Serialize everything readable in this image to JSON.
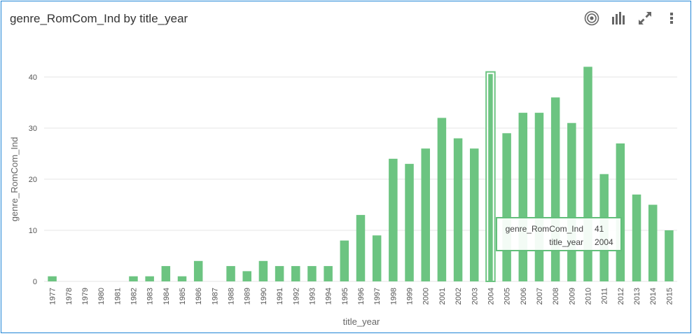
{
  "header": {
    "title": "genre_RomCom_Ind by title_year"
  },
  "toolbar": {
    "icons": [
      "target-icon",
      "bar-chart-icon",
      "expand-icon",
      "more-vertical-icon"
    ]
  },
  "colors": {
    "bar": "#6cc481",
    "bar_highlight_stroke": "#6cc481",
    "grid": "#e6e6e6",
    "frame": "#1f84d6"
  },
  "tooltip": {
    "series_label": "genre_RomCom_Ind",
    "series_value": "41",
    "x_label": "title_year",
    "x_value": "2004"
  },
  "chart_data": {
    "type": "bar",
    "title": "genre_RomCom_Ind by title_year",
    "xlabel": "title_year",
    "ylabel": "genre_RomCom_Ind",
    "ylim": [
      0,
      40
    ],
    "yticks": [
      0,
      10,
      20,
      30,
      40
    ],
    "grid": true,
    "categories": [
      "1977",
      "1978",
      "1979",
      "1980",
      "1981",
      "1982",
      "1983",
      "1984",
      "1985",
      "1986",
      "1987",
      "1988",
      "1989",
      "1990",
      "1991",
      "1992",
      "1993",
      "1994",
      "1995",
      "1996",
      "1997",
      "1998",
      "1999",
      "2000",
      "2001",
      "2002",
      "2003",
      "2004",
      "2005",
      "2006",
      "2007",
      "2008",
      "2009",
      "2010",
      "2011",
      "2012",
      "2013",
      "2014",
      "2015"
    ],
    "series": [
      {
        "values": [
          1,
          0,
          0,
          0,
          0,
          1,
          1,
          3,
          1,
          4,
          0,
          3,
          2,
          4,
          3,
          3,
          3,
          3,
          8,
          13,
          9,
          24,
          23,
          26,
          32,
          28,
          26,
          41,
          29,
          33,
          33,
          36,
          31,
          42,
          21,
          27,
          17,
          15,
          10
        ]
      }
    ],
    "highlighted_category": "2004"
  }
}
